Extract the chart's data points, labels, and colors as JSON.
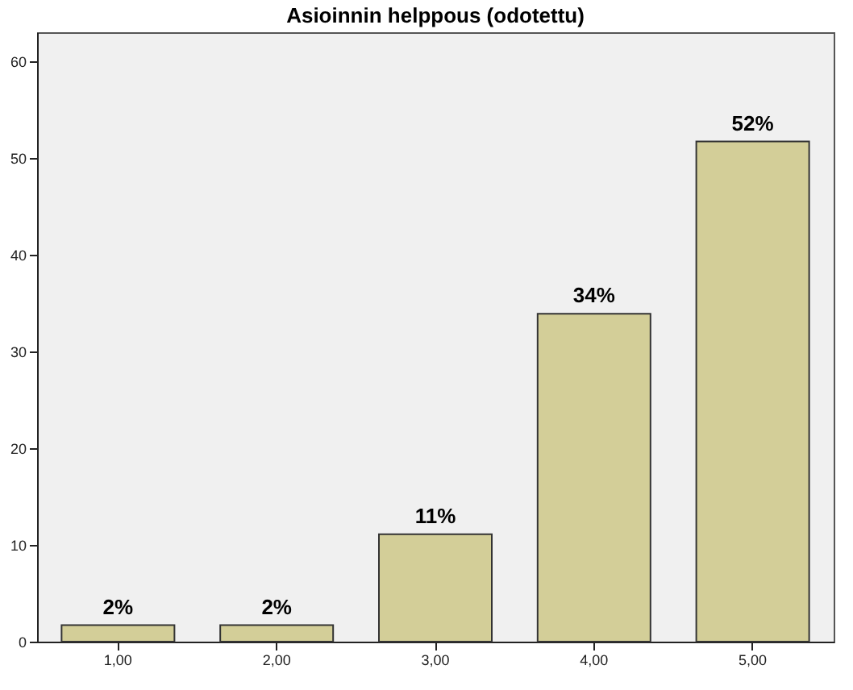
{
  "chart_data": {
    "type": "bar",
    "title": "Asioinnin helppous (odotettu)",
    "categories": [
      "1,00",
      "2,00",
      "3,00",
      "4,00",
      "5,00"
    ],
    "values": [
      1.7,
      1.7,
      11.1,
      33.9,
      51.7
    ],
    "value_labels": [
      "2%",
      "2%",
      "11%",
      "34%",
      "52%"
    ],
    "color": "#d3ce98",
    "ylim": [
      0,
      63
    ],
    "yticks": [
      0,
      10,
      20,
      30,
      40,
      50,
      60
    ],
    "grid": false
  }
}
